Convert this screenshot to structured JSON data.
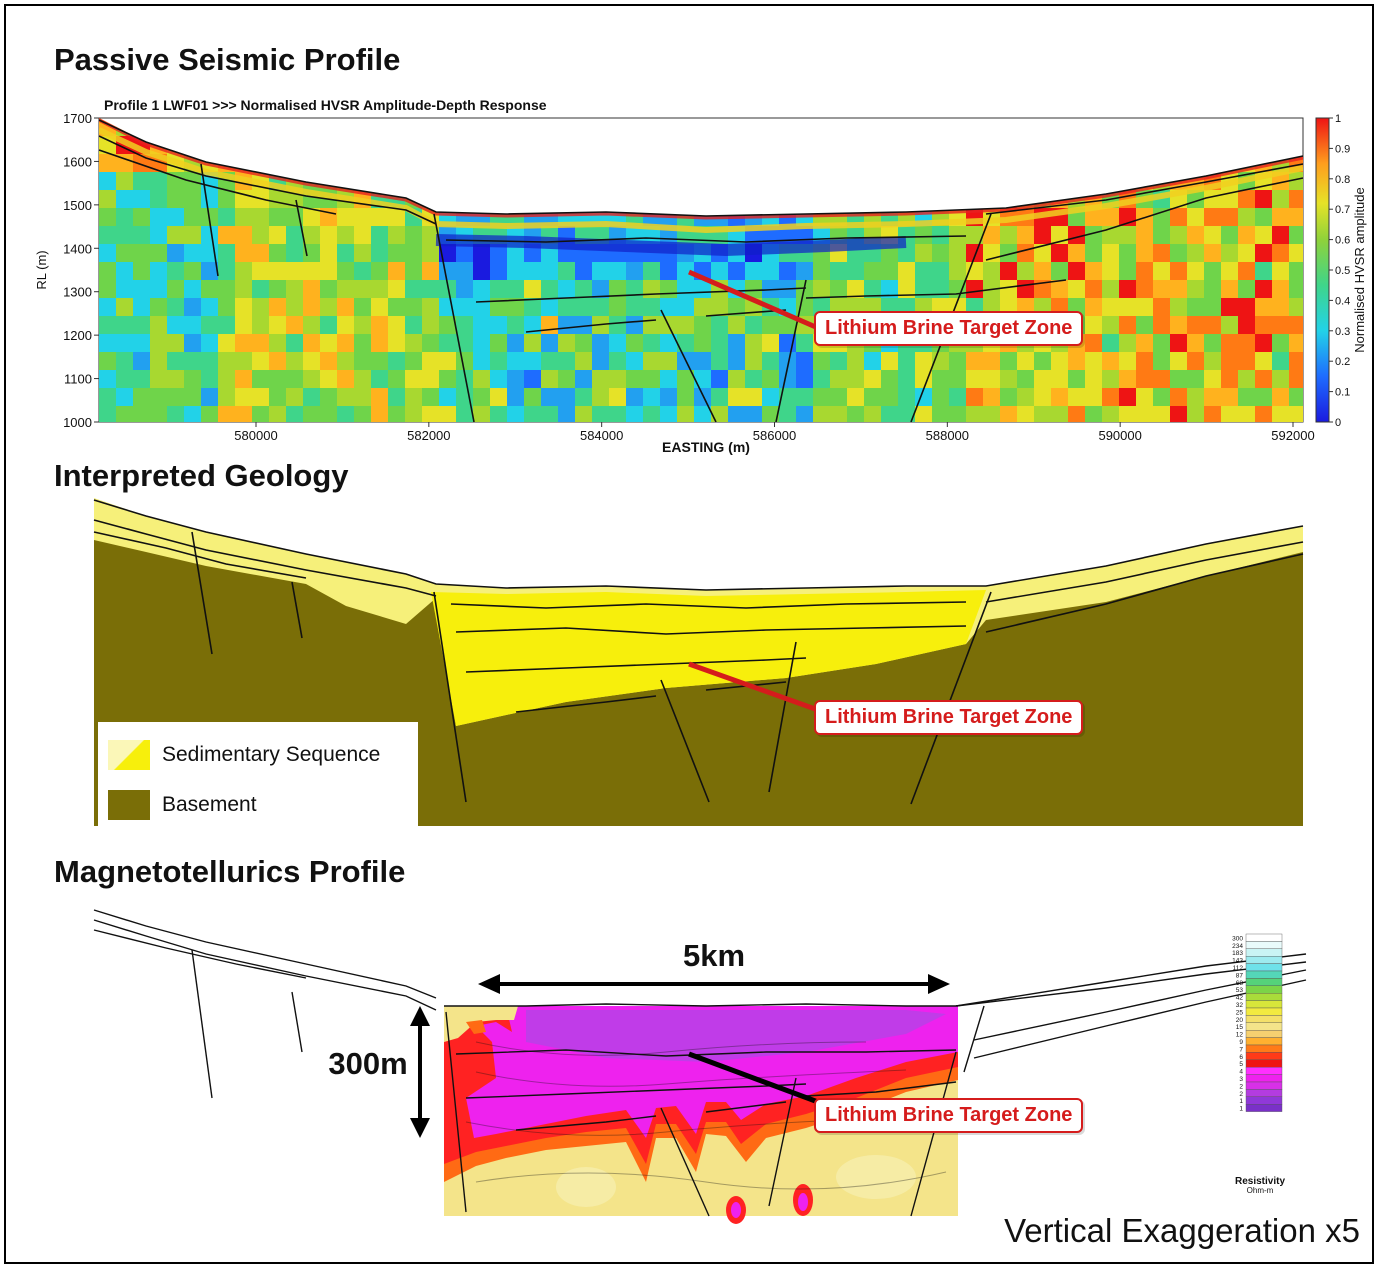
{
  "sections": {
    "seismic_title": "Passive Seismic Profile",
    "geology_title": "Interpreted Geology",
    "mt_title": "Magnetotellurics Profile"
  },
  "seismic": {
    "subtitle": "Profile 1   LWF01 >>> Normalised HVSR Amplitude-Depth Response",
    "ylabel": "RL (m)",
    "xlabel": "EASTING (m)",
    "yticks": [
      "1700",
      "1600",
      "1500",
      "1400",
      "1300",
      "1200",
      "1100",
      "1000"
    ],
    "xticks": [
      "580000",
      "582000",
      "584000",
      "586000",
      "588000",
      "590000",
      "592000"
    ],
    "colorbar_label": "Normalised HVSR amplitude",
    "colorbar_ticks": [
      "1",
      "0.9",
      "0.8",
      "0.7",
      "0.6",
      "0.5",
      "0.4",
      "0.3",
      "0.2",
      "0.1",
      "0"
    ],
    "callout": "Lithium Brine Target Zone"
  },
  "geology": {
    "callout": "Lithium Brine Target Zone",
    "legend": [
      {
        "label": "Sedimentary Sequence",
        "color": "#f6f07a"
      },
      {
        "label": "Basement",
        "color": "#7a6e07"
      }
    ]
  },
  "mt": {
    "scale_label": "5km",
    "depth_label": "300m",
    "callout": "Lithium Brine Target Zone",
    "resistivity_values": [
      "300",
      "234",
      "183",
      "143",
      "112",
      "87",
      "68",
      "53",
      "42",
      "32",
      "25",
      "20",
      "15",
      "12",
      "9",
      "7",
      "6",
      "5",
      "4",
      "3",
      "2",
      "2",
      "1",
      "1"
    ],
    "resistivity_title": "Resistivity",
    "resistivity_unit": "Ohm-m"
  },
  "footer": "Vertical Exaggeration x5",
  "colors": {
    "callout_red": "#d51c1c",
    "sediment": "#f6f07a",
    "basement": "#7a6e07"
  }
}
